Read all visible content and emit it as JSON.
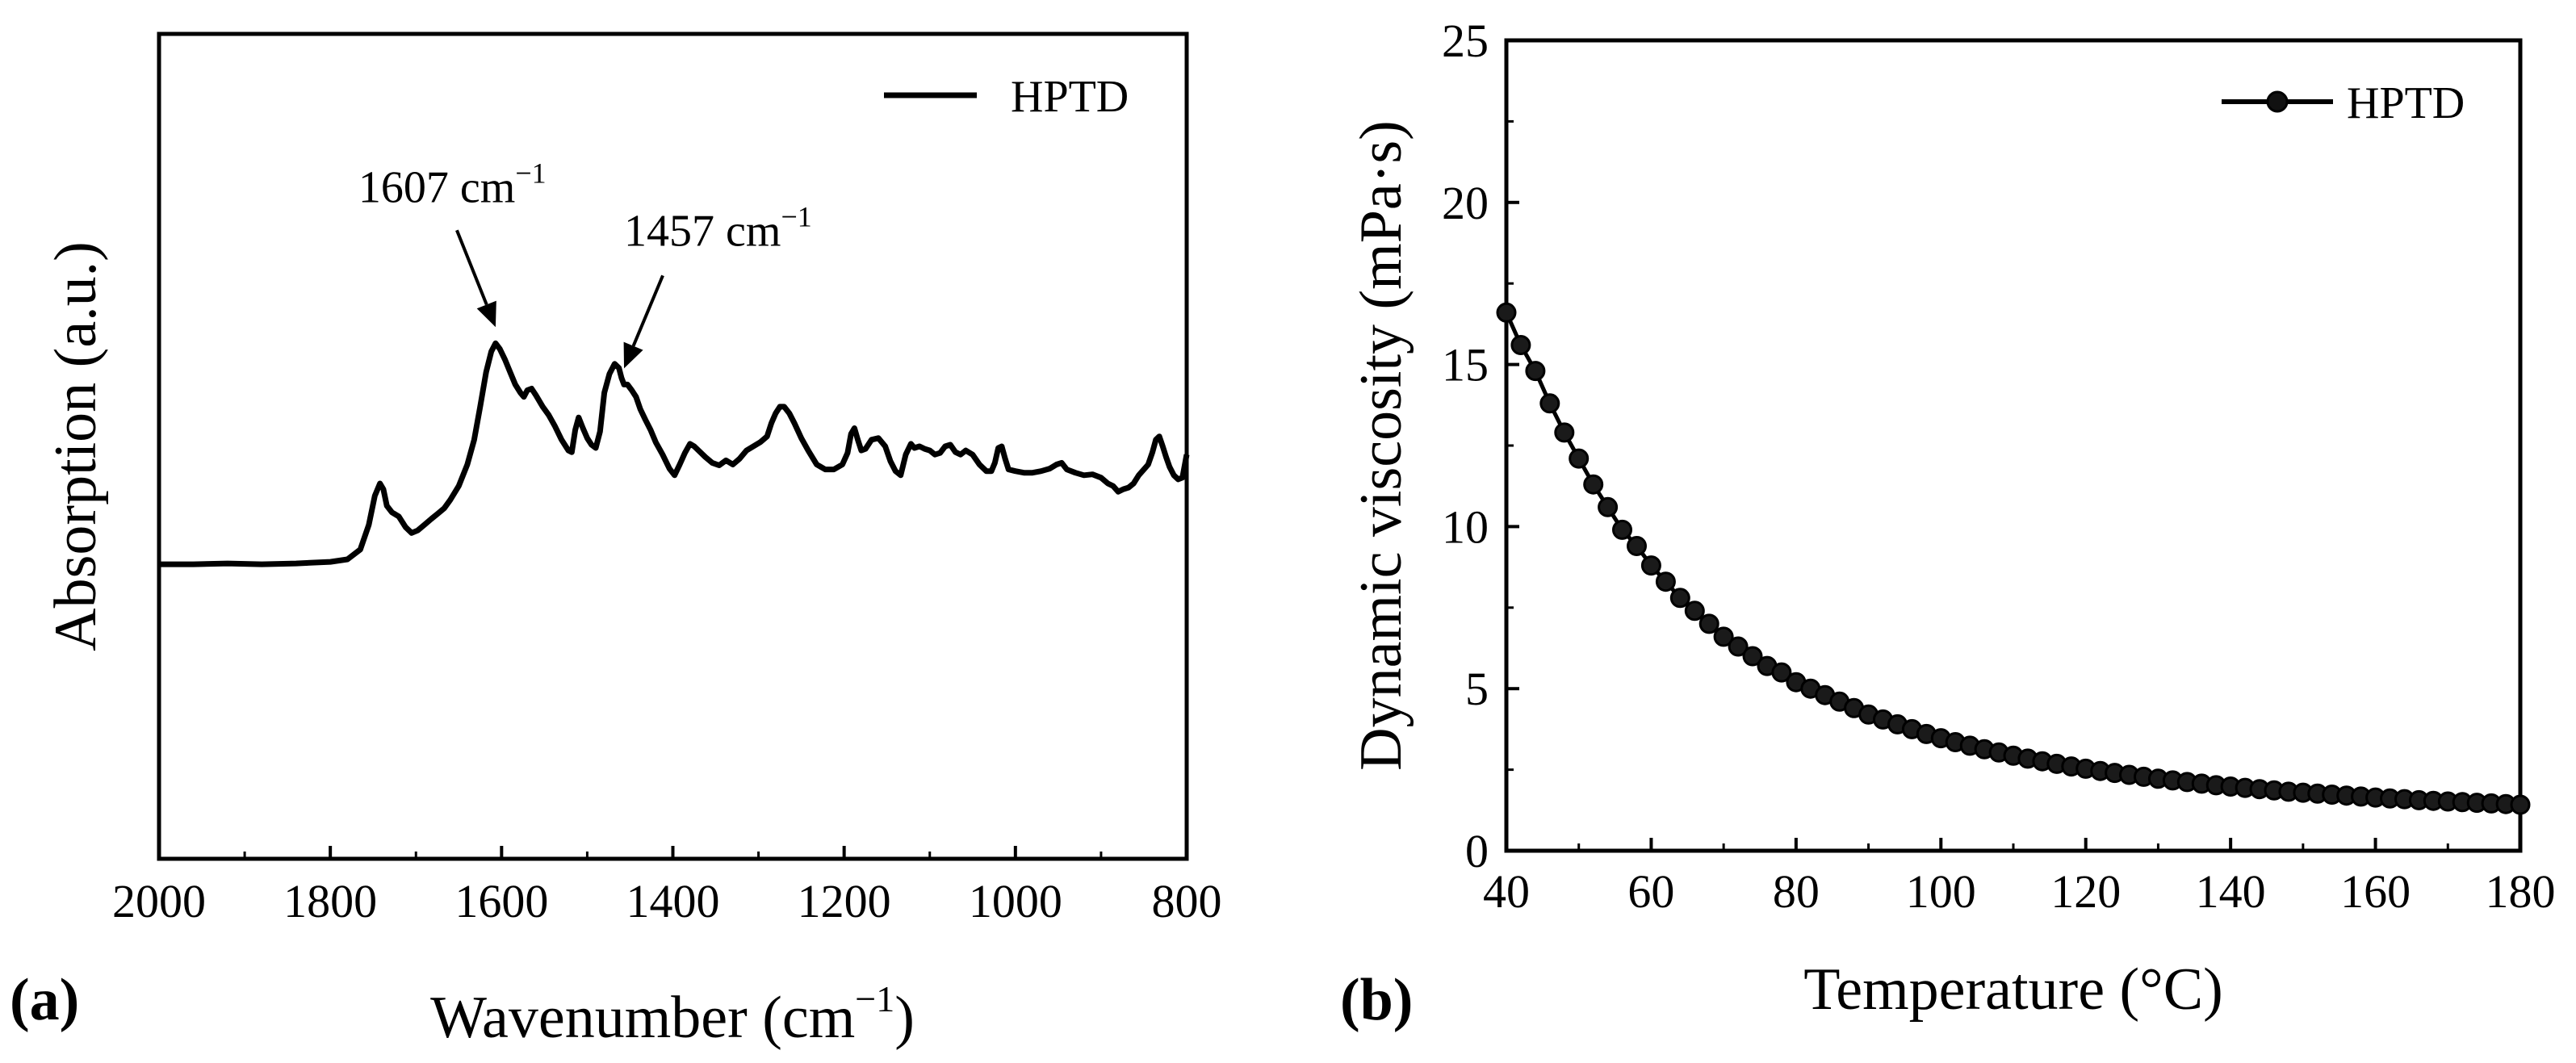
{
  "chart_data": [
    {
      "type": "line",
      "panel_label": "(a)",
      "xlabel": "Wavenumber (cm",
      "xlabel_sup": "−1",
      "xlabel_end": ")",
      "ylabel": "Absorption (a.u.)",
      "xlim": [
        2000,
        800
      ],
      "ylim": [
        0,
        1
      ],
      "x_ticks": [
        2000,
        1800,
        1600,
        1400,
        1200,
        1000,
        800
      ],
      "x_tick_labels": [
        "2000",
        "1800",
        "1600",
        "1400",
        "1200",
        "1000",
        "800"
      ],
      "legend": "HPTD",
      "legend_position": "top-right",
      "annotations": [
        {
          "text": "1607 cm",
          "sup": "−1",
          "x": 1607
        },
        {
          "text": "1457 cm",
          "sup": "−1",
          "x": 1457
        }
      ],
      "series": [
        {
          "name": "HPTD",
          "x": [
            2000,
            1960,
            1920,
            1880,
            1840,
            1800,
            1780,
            1765,
            1755,
            1748,
            1742,
            1738,
            1734,
            1728,
            1720,
            1712,
            1705,
            1698,
            1690,
            1682,
            1675,
            1667,
            1660,
            1650,
            1640,
            1632,
            1625,
            1618,
            1612,
            1607,
            1602,
            1596,
            1590,
            1584,
            1578,
            1574,
            1570,
            1565,
            1560,
            1552,
            1545,
            1538,
            1530,
            1522,
            1518,
            1514,
            1510,
            1505,
            1500,
            1495,
            1490,
            1485,
            1480,
            1474,
            1468,
            1463,
            1460,
            1457,
            1453,
            1448,
            1443,
            1438,
            1432,
            1426,
            1420,
            1412,
            1404,
            1398,
            1392,
            1386,
            1380,
            1375,
            1370,
            1362,
            1354,
            1346,
            1338,
            1330,
            1322,
            1314,
            1306,
            1298,
            1290,
            1285,
            1280,
            1275,
            1270,
            1264,
            1258,
            1250,
            1242,
            1232,
            1222,
            1212,
            1202,
            1196,
            1192,
            1188,
            1184,
            1180,
            1175,
            1168,
            1160,
            1152,
            1146,
            1140,
            1134,
            1128,
            1122,
            1118,
            1112,
            1106,
            1100,
            1094,
            1088,
            1082,
            1076,
            1070,
            1064,
            1058,
            1050,
            1042,
            1034,
            1028,
            1024,
            1020,
            1016,
            1012,
            1008,
            1000,
            990,
            980,
            970,
            960,
            952,
            946,
            940,
            930,
            920,
            910,
            900,
            892,
            886,
            880,
            874,
            868,
            862,
            856,
            850,
            845,
            840,
            836,
            832,
            828,
            824,
            820,
            815,
            810,
            805,
            800
          ],
          "y": [
            0.357,
            0.357,
            0.358,
            0.357,
            0.358,
            0.36,
            0.363,
            0.375,
            0.405,
            0.44,
            0.455,
            0.448,
            0.428,
            0.42,
            0.415,
            0.402,
            0.395,
            0.398,
            0.405,
            0.412,
            0.418,
            0.425,
            0.435,
            0.452,
            0.478,
            0.508,
            0.548,
            0.59,
            0.615,
            0.625,
            0.618,
            0.605,
            0.59,
            0.575,
            0.565,
            0.56,
            0.568,
            0.57,
            0.562,
            0.548,
            0.538,
            0.525,
            0.508,
            0.495,
            0.493,
            0.52,
            0.535,
            0.522,
            0.51,
            0.502,
            0.498,
            0.518,
            0.565,
            0.588,
            0.6,
            0.595,
            0.583,
            0.575,
            0.575,
            0.568,
            0.56,
            0.545,
            0.532,
            0.52,
            0.505,
            0.49,
            0.473,
            0.465,
            0.478,
            0.492,
            0.503,
            0.5,
            0.495,
            0.487,
            0.48,
            0.477,
            0.483,
            0.478,
            0.485,
            0.495,
            0.5,
            0.505,
            0.512,
            0.528,
            0.54,
            0.548,
            0.548,
            0.54,
            0.528,
            0.51,
            0.495,
            0.478,
            0.472,
            0.472,
            0.478,
            0.492,
            0.515,
            0.522,
            0.508,
            0.495,
            0.497,
            0.508,
            0.51,
            0.5,
            0.482,
            0.47,
            0.465,
            0.49,
            0.503,
            0.498,
            0.5,
            0.497,
            0.495,
            0.49,
            0.492,
            0.5,
            0.502,
            0.493,
            0.49,
            0.495,
            0.49,
            0.478,
            0.47,
            0.47,
            0.48,
            0.498,
            0.5,
            0.485,
            0.472,
            0.47,
            0.468,
            0.468,
            0.47,
            0.473,
            0.478,
            0.48,
            0.472,
            0.468,
            0.465,
            0.466,
            0.462,
            0.455,
            0.452,
            0.445,
            0.448,
            0.45,
            0.455,
            0.465,
            0.472,
            0.478,
            0.493,
            0.508,
            0.512,
            0.5,
            0.487,
            0.475,
            0.465,
            0.46,
            0.462,
            0.49
          ],
          "color": "#000000"
        }
      ]
    },
    {
      "type": "line",
      "panel_label": "(b)",
      "xlabel": "Temperature (°C)",
      "ylabel": "Dynamic viscosity (mPa·s)",
      "xlim": [
        40,
        180
      ],
      "ylim": [
        0,
        25
      ],
      "x_ticks": [
        40,
        60,
        80,
        100,
        120,
        140,
        160,
        180
      ],
      "x_tick_labels": [
        "40",
        "60",
        "80",
        "100",
        "120",
        "140",
        "160",
        "180"
      ],
      "y_ticks": [
        0,
        5,
        10,
        15,
        20,
        25
      ],
      "y_tick_labels": [
        "0",
        "5",
        "10",
        "15",
        "20",
        "25"
      ],
      "legend": "HPTD",
      "legend_position": "top-right",
      "series": [
        {
          "name": "HPTD",
          "marker": "circle",
          "color": "#000000",
          "x": [
            40,
            42,
            44,
            46,
            48,
            50,
            52,
            54,
            56,
            58,
            60,
            62,
            64,
            66,
            68,
            70,
            72,
            74,
            76,
            78,
            80,
            82,
            84,
            86,
            88,
            90,
            92,
            94,
            96,
            98,
            100,
            102,
            104,
            106,
            108,
            110,
            112,
            114,
            116,
            118,
            120,
            122,
            124,
            126,
            128,
            130,
            132,
            134,
            136,
            138,
            140,
            142,
            144,
            146,
            148,
            150,
            152,
            154,
            156,
            158,
            160,
            162,
            164,
            166,
            168,
            170,
            172,
            174,
            176,
            178,
            180
          ],
          "y": [
            16.6,
            15.6,
            14.8,
            13.8,
            12.9,
            12.1,
            11.3,
            10.6,
            9.9,
            9.4,
            8.8,
            8.3,
            7.8,
            7.4,
            7.0,
            6.6,
            6.3,
            6.0,
            5.7,
            5.5,
            5.2,
            5.0,
            4.8,
            4.6,
            4.4,
            4.2,
            4.05,
            3.9,
            3.75,
            3.6,
            3.47,
            3.35,
            3.24,
            3.13,
            3.03,
            2.93,
            2.84,
            2.76,
            2.68,
            2.6,
            2.53,
            2.46,
            2.4,
            2.34,
            2.28,
            2.22,
            2.17,
            2.12,
            2.07,
            2.02,
            1.98,
            1.94,
            1.9,
            1.86,
            1.82,
            1.79,
            1.76,
            1.73,
            1.7,
            1.67,
            1.64,
            1.61,
            1.59,
            1.56,
            1.54,
            1.52,
            1.5,
            1.48,
            1.46,
            1.44,
            1.42
          ]
        }
      ]
    }
  ]
}
